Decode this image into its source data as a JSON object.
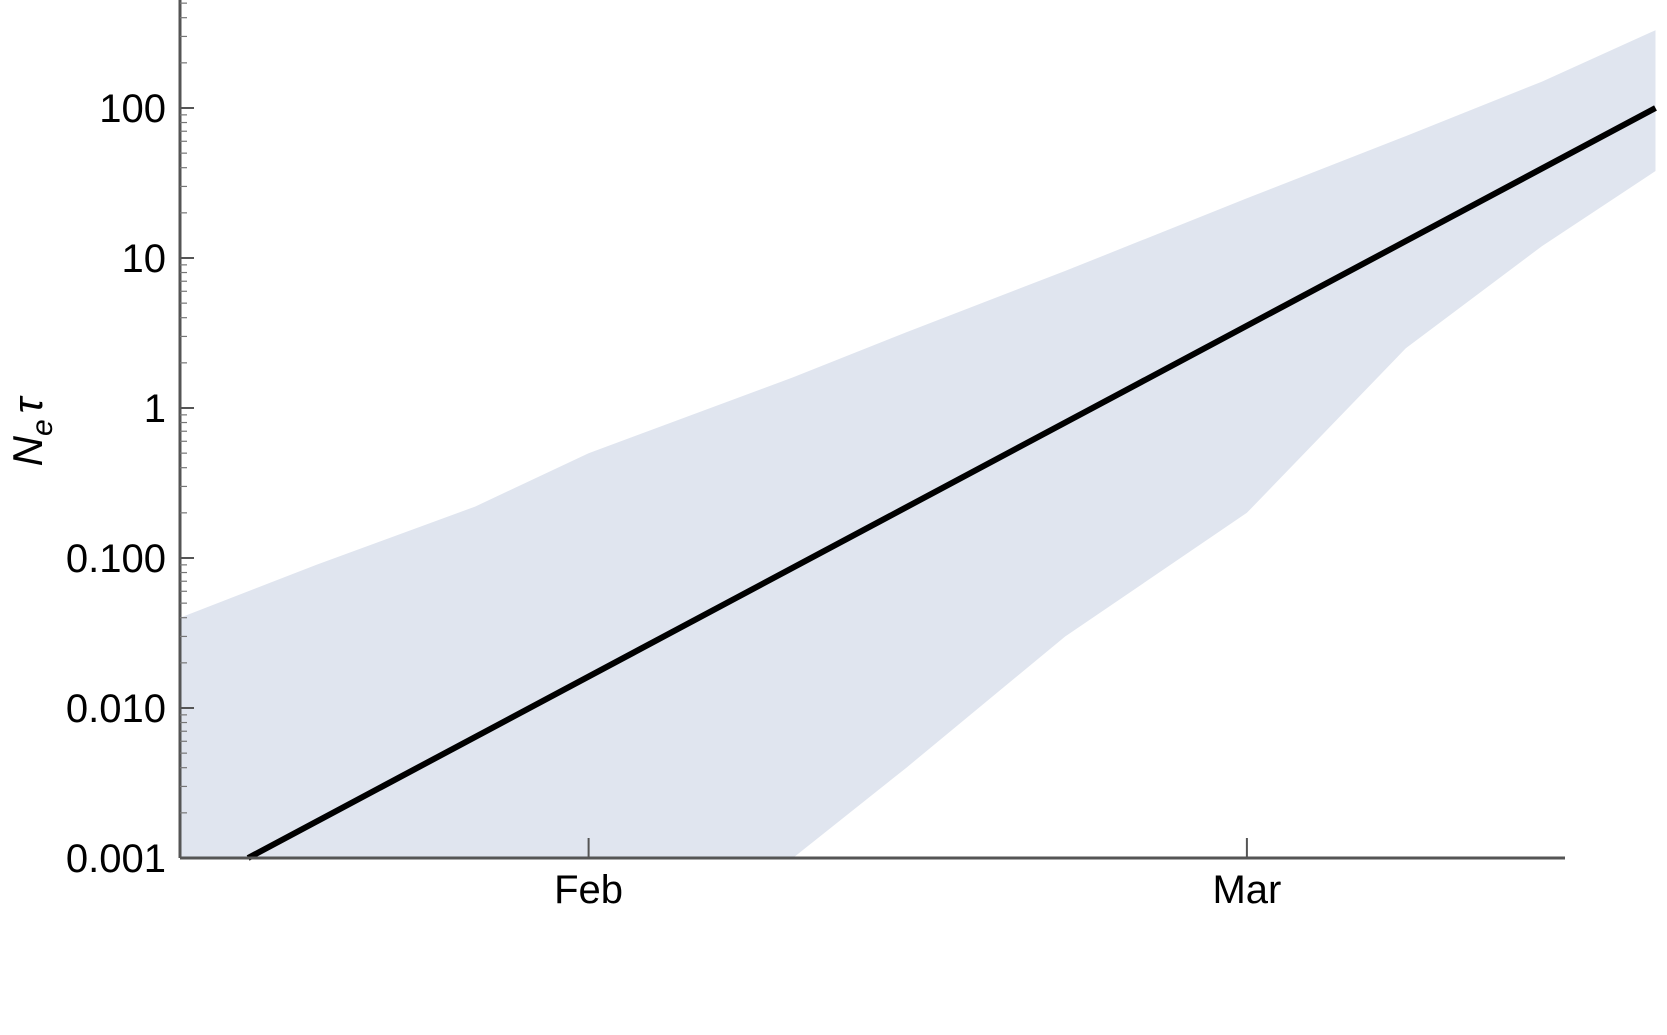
{
  "chart_data": {
    "type": "area",
    "title": "",
    "xlabel": "",
    "ylabel_main": "N",
    "ylabel_sub": "e",
    "ylabel_tail": "τ",
    "yscale": "log",
    "ylim": [
      0.001,
      500
    ],
    "xlim": [
      "2020-01-14",
      "2020-03-19"
    ],
    "grid": false,
    "legend": "none",
    "y_ticks": [
      {
        "value": 0.001,
        "label": "0.001"
      },
      {
        "value": 0.01,
        "label": "0.010"
      },
      {
        "value": 0.1,
        "label": "0.100"
      },
      {
        "value": 1,
        "label": "1"
      },
      {
        "value": 10,
        "label": "10"
      },
      {
        "value": 100,
        "label": "100"
      }
    ],
    "x_ticks": [
      {
        "value": "2020-02-01",
        "label": "Feb"
      },
      {
        "value": "2020-03-01",
        "label": "Mar"
      }
    ],
    "colors": {
      "line": "#000000",
      "band": "#e0e5ef",
      "axis": "#555555"
    },
    "series": [
      {
        "type": "line",
        "x": [
          "2020-01-17",
          "2020-03-19"
        ],
        "y": [
          0.001,
          100
        ]
      },
      {
        "type": "band",
        "x": [
          "2020-01-14",
          "2020-01-20",
          "2020-01-27",
          "2020-02-01",
          "2020-02-10",
          "2020-02-15",
          "2020-02-22",
          "2020-03-01",
          "2020-03-08",
          "2020-03-14",
          "2020-03-19"
        ],
        "upper": [
          0.04,
          0.09,
          0.22,
          0.5,
          1.6,
          3.2,
          8.2,
          25,
          65,
          150,
          330
        ],
        "lower": [
          0.001,
          0.001,
          0.001,
          0.001,
          0.001,
          0.004,
          0.03,
          0.2,
          2.5,
          12,
          38
        ]
      }
    ]
  }
}
